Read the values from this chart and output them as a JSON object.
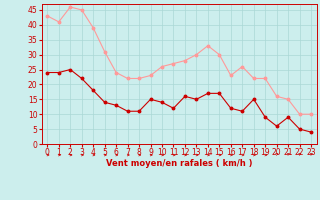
{
  "x": [
    0,
    1,
    2,
    3,
    4,
    5,
    6,
    7,
    8,
    9,
    10,
    11,
    12,
    13,
    14,
    15,
    16,
    17,
    18,
    19,
    20,
    21,
    22,
    23
  ],
  "avg_wind": [
    24,
    24,
    25,
    22,
    18,
    14,
    13,
    11,
    11,
    15,
    14,
    12,
    16,
    15,
    17,
    17,
    12,
    11,
    15,
    9,
    6,
    9,
    5,
    4
  ],
  "gust_wind": [
    43,
    41,
    46,
    45,
    39,
    31,
    24,
    22,
    22,
    23,
    26,
    27,
    28,
    30,
    33,
    30,
    23,
    26,
    22,
    22,
    16,
    15,
    10,
    10
  ],
  "bg_color": "#cceeed",
  "grid_color": "#aad8d6",
  "avg_color": "#cc0000",
  "gust_color": "#ff9999",
  "xlabel": "Vent moyen/en rafales ( km/h )",
  "xlabel_color": "#cc0000",
  "xlabel_fontsize": 6.0,
  "tick_fontsize": 5.5,
  "ylim_low": 0,
  "ylim_high": 47,
  "yticks": [
    0,
    5,
    10,
    15,
    20,
    25,
    30,
    35,
    40,
    45
  ],
  "marker_size": 1.8,
  "line_width": 0.8
}
